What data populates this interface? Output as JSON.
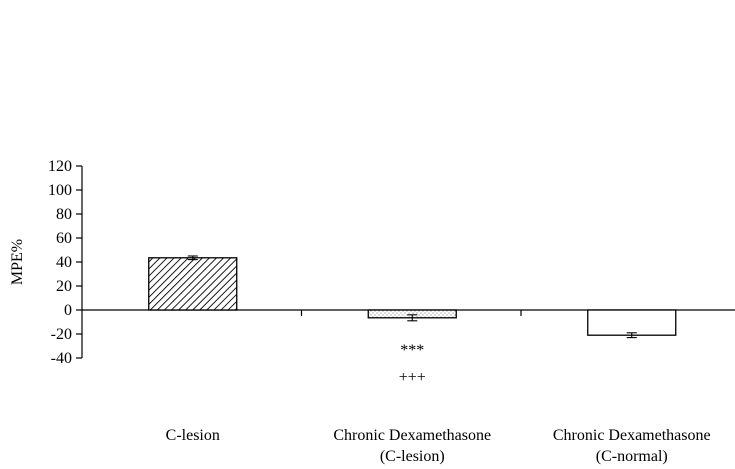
{
  "chart_data": {
    "type": "bar",
    "title": "",
    "xlabel": "",
    "ylabel": "MPE%",
    "ylim": [
      -40,
      120
    ],
    "yticks": [
      -40,
      -20,
      0,
      20,
      40,
      60,
      80,
      100,
      120
    ],
    "grid": false,
    "legend": "none",
    "categories": [
      [
        "C-lesion"
      ],
      [
        "Chronic Dexamethasone",
        "(C-lesion)"
      ],
      [
        "Chronic Dexamethasone",
        "(C-normal)"
      ]
    ],
    "values": [
      43.5,
      -6.5,
      -21
    ],
    "errors": [
      1.5,
      2.5,
      2
    ],
    "fills": [
      "diagonal-hatch",
      "dotted",
      "white"
    ],
    "annotations": [
      {
        "category_index": 1,
        "lines": [
          "***",
          "+++"
        ]
      }
    ]
  }
}
